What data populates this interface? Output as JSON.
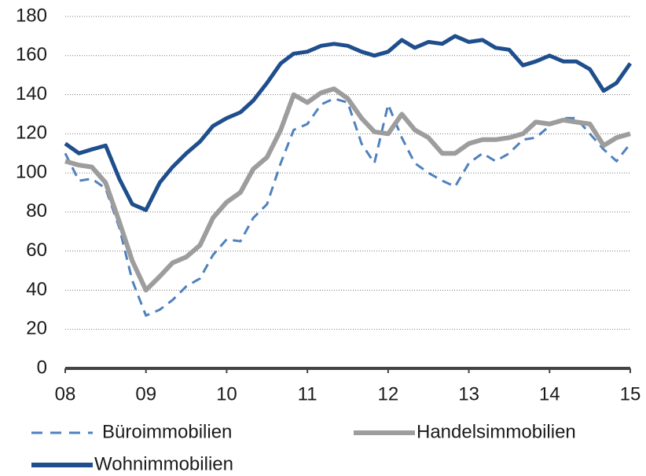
{
  "chart_data": {
    "type": "line",
    "x": [
      8,
      8.17,
      8.33,
      8.5,
      8.67,
      8.83,
      9,
      9.17,
      9.33,
      9.5,
      9.67,
      9.83,
      10,
      10.17,
      10.33,
      10.5,
      10.67,
      10.83,
      11,
      11.17,
      11.33,
      11.5,
      11.67,
      11.83,
      12,
      12.17,
      12.33,
      12.5,
      12.67,
      12.83,
      13,
      13.17,
      13.33,
      13.5,
      13.67,
      13.83,
      14,
      14.17,
      14.33,
      14.5,
      14.67,
      14.83,
      15
    ],
    "series": [
      {
        "name": "Büroimmobilien",
        "color": "#4f81bd",
        "dashed": true,
        "values": [
          110,
          96,
          97,
          92,
          72,
          45,
          27,
          30,
          35,
          42,
          46,
          58,
          66,
          65,
          77,
          84,
          105,
          122,
          125,
          135,
          138,
          136,
          115,
          105,
          135,
          118,
          105,
          100,
          96,
          93,
          105,
          110,
          106,
          110,
          117,
          118,
          124,
          128,
          128,
          120,
          112,
          106,
          115
        ]
      },
      {
        "name": "Handelsimmobilien",
        "color": "#9d9d9d",
        "dashed": false,
        "values": [
          106,
          104,
          103,
          95,
          75,
          55,
          40,
          47,
          54,
          57,
          63,
          77,
          85,
          90,
          102,
          108,
          122,
          140,
          136,
          141,
          143,
          138,
          128,
          121,
          120,
          130,
          122,
          118,
          110,
          110,
          115,
          117,
          117,
          118,
          120,
          126,
          125,
          127,
          126,
          125,
          114,
          118,
          120
        ]
      },
      {
        "name": "Wohnimmobilien",
        "color": "#1f4e8c",
        "dashed": false,
        "values": [
          115,
          110,
          112,
          114,
          97,
          84,
          81,
          95,
          103,
          110,
          116,
          124,
          128,
          131,
          137,
          146,
          156,
          161,
          162,
          165,
          166,
          165,
          162,
          160,
          162,
          168,
          164,
          167,
          166,
          170,
          167,
          168,
          164,
          163,
          155,
          157,
          160,
          157,
          157,
          153,
          142,
          146,
          156
        ]
      }
    ],
    "xlim": [
      8,
      15
    ],
    "xticks": [
      {
        "value": 8,
        "label": "08"
      },
      {
        "value": 9,
        "label": "09"
      },
      10,
      11,
      12,
      13,
      14,
      15
    ],
    "ylim": [
      0,
      180
    ],
    "yticks": [
      0,
      20,
      40,
      60,
      80,
      100,
      120,
      140,
      160,
      180
    ],
    "grid": true
  }
}
